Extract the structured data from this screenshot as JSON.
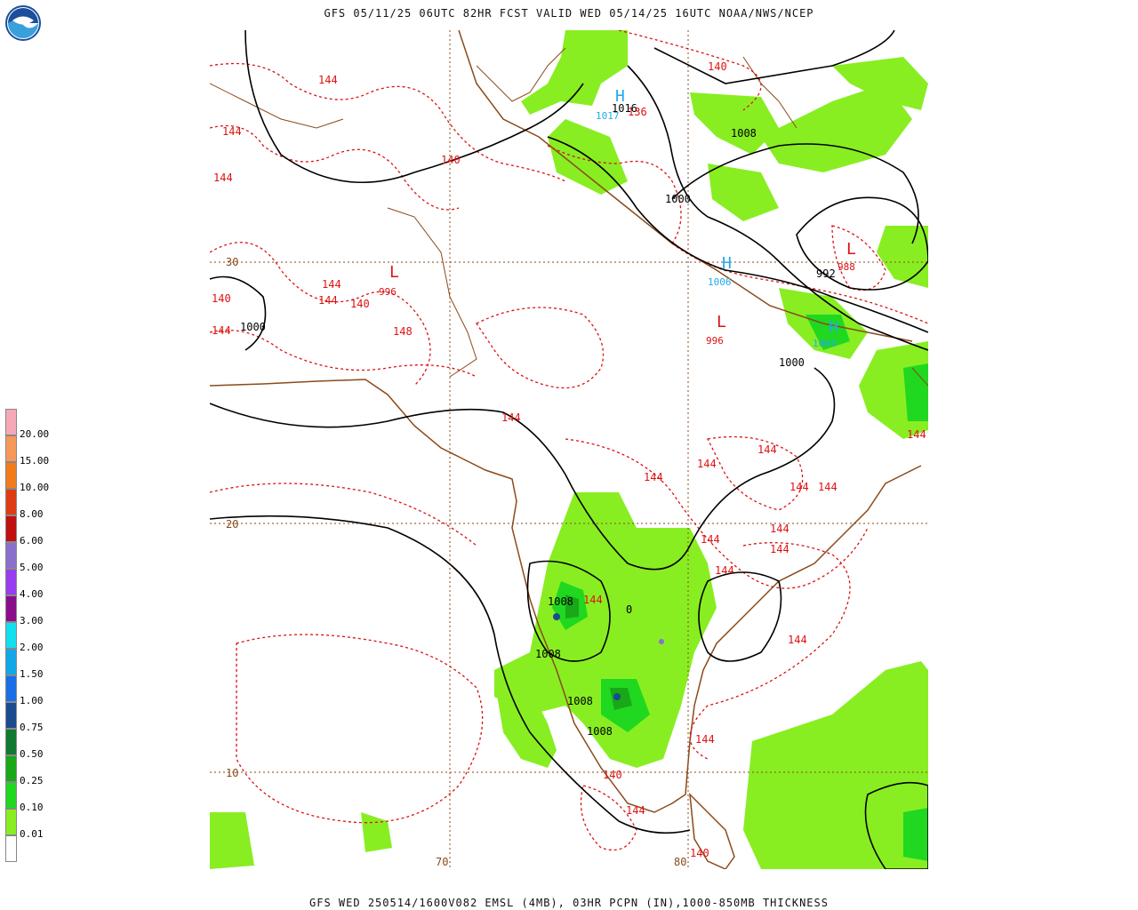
{
  "header": {
    "title": "GFS 05/11/25 06UTC 82HR FCST VALID WED 05/14/25 16UTC NOAA/NWS/NCEP"
  },
  "footer": {
    "title": "GFS WED 250514/1600V082 EMSL (4MB), 03HR PCPN (IN),1000-850MB THICKNESS"
  },
  "logo": {
    "text": "NOAA"
  },
  "legend": {
    "items": [
      {
        "label": "20.00",
        "color": "#f7a8b8"
      },
      {
        "label": "15.00",
        "color": "#f69858"
      },
      {
        "label": "10.00",
        "color": "#f27c1c"
      },
      {
        "label": "8.00",
        "color": "#e03c12"
      },
      {
        "label": "6.00",
        "color": "#c01010"
      },
      {
        "label": "5.00",
        "color": "#8a70cc"
      },
      {
        "label": "4.00",
        "color": "#9a3cf0"
      },
      {
        "label": "3.00",
        "color": "#8a0e8a"
      },
      {
        "label": "2.00",
        "color": "#10e0f0"
      },
      {
        "label": "1.50",
        "color": "#10a8e8"
      },
      {
        "label": "1.00",
        "color": "#1a6ee8"
      },
      {
        "label": "0.75",
        "color": "#1a4a90"
      },
      {
        "label": "0.50",
        "color": "#107a30"
      },
      {
        "label": "0.25",
        "color": "#18a818"
      },
      {
        "label": "0.10",
        "color": "#20d820"
      },
      {
        "label": "0.01",
        "color": "#88ee22"
      }
    ]
  },
  "axes": {
    "lat_labels": [
      "30",
      "20",
      "10"
    ],
    "lon_labels": [
      "70",
      "80"
    ]
  },
  "pressure_labels": [
    {
      "text": "1016"
    },
    {
      "text": "1008"
    },
    {
      "text": "1000"
    },
    {
      "text": "992"
    },
    {
      "text": "1008"
    },
    {
      "text": "1008"
    },
    {
      "text": "1008"
    },
    {
      "text": "1008"
    },
    {
      "text": "1000"
    },
    {
      "text": "1000"
    },
    {
      "text": "0"
    }
  ],
  "thickness_labels": [
    {
      "text": "140"
    },
    {
      "text": "144"
    },
    {
      "text": "144"
    },
    {
      "text": "140"
    },
    {
      "text": "140"
    },
    {
      "text": "144"
    },
    {
      "text": "144"
    },
    {
      "text": "140"
    },
    {
      "text": "148"
    },
    {
      "text": "144"
    },
    {
      "text": "144"
    },
    {
      "text": "144"
    },
    {
      "text": "144"
    },
    {
      "text": "144"
    },
    {
      "text": "144"
    },
    {
      "text": "144"
    },
    {
      "text": "144"
    },
    {
      "text": "144"
    },
    {
      "text": "144"
    },
    {
      "text": "144"
    },
    {
      "text": "144"
    },
    {
      "text": "144"
    },
    {
      "text": "140"
    },
    {
      "text": "144"
    },
    {
      "text": "140"
    },
    {
      "text": "144"
    },
    {
      "text": "144"
    },
    {
      "text": "144"
    },
    {
      "text": "136"
    }
  ],
  "centers": [
    {
      "symbol": "H",
      "value": "1017",
      "color": "#22aaee"
    },
    {
      "symbol": "H",
      "value": "1006",
      "color": "#22aaee"
    },
    {
      "symbol": "H",
      "value": "1004",
      "color": "#22aaee"
    },
    {
      "symbol": "L",
      "value": "988",
      "color": "#dd1111"
    },
    {
      "symbol": "L",
      "value": "996",
      "color": "#dd1111"
    },
    {
      "symbol": "L",
      "value": "996",
      "color": "#dd1111"
    }
  ]
}
